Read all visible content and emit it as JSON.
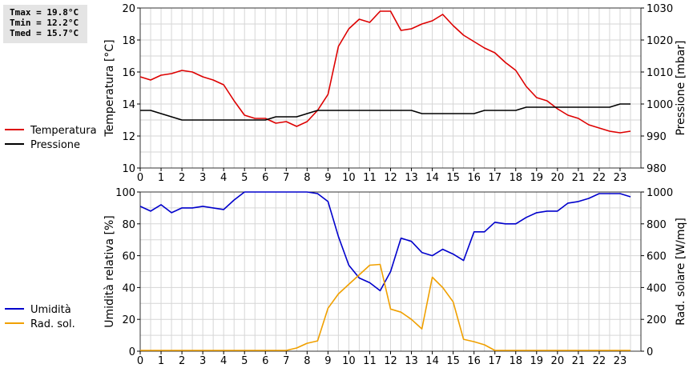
{
  "stats": {
    "tmax": "Tmax = 19.8°C",
    "tmin": "Tmin = 12.2°C",
    "tmed": "Tmed = 15.7°C"
  },
  "chart_data": [
    {
      "type": "line",
      "xlim": [
        0,
        24
      ],
      "x_ticks": [
        0,
        1,
        2,
        3,
        4,
        5,
        6,
        7,
        8,
        9,
        10,
        11,
        12,
        13,
        14,
        15,
        16,
        17,
        18,
        19,
        20,
        21,
        22,
        23
      ],
      "ylabel": "Temperatura [°C]",
      "ylim": [
        10,
        20
      ],
      "y_ticks": [
        10,
        12,
        14,
        16,
        18,
        20
      ],
      "y2label": "Pressione [mbar]",
      "y2lim": [
        980,
        1030
      ],
      "y2_ticks": [
        980,
        990,
        1000,
        1010,
        1020,
        1030
      ],
      "grid": true,
      "legend_position": "left",
      "series": [
        {
          "name": "Temperatura",
          "color": "#dd0000",
          "axis": "left",
          "x": [
            0,
            0.5,
            1,
            1.5,
            2,
            2.5,
            3,
            3.5,
            4,
            4.5,
            5,
            5.5,
            6,
            6.5,
            7,
            7.5,
            8,
            8.5,
            9,
            9.5,
            10,
            10.5,
            11,
            11.5,
            12,
            12.5,
            13,
            13.5,
            14,
            14.5,
            15,
            15.5,
            16,
            16.5,
            17,
            17.5,
            18,
            18.5,
            19,
            19.5,
            20,
            20.5,
            21,
            21.5,
            22,
            22.5,
            23,
            23.5
          ],
          "y": [
            15.7,
            15.5,
            15.8,
            15.9,
            16.1,
            16.0,
            15.7,
            15.5,
            15.2,
            14.2,
            13.3,
            13.1,
            13.1,
            12.8,
            12.9,
            12.6,
            12.9,
            13.6,
            14.6,
            17.6,
            18.7,
            19.3,
            19.1,
            19.8,
            19.8,
            18.6,
            18.7,
            19.0,
            19.2,
            19.6,
            18.9,
            18.3,
            17.9,
            17.5,
            17.2,
            16.6,
            16.1,
            15.1,
            14.4,
            14.2,
            13.7,
            13.3,
            13.1,
            12.7,
            12.5,
            12.3,
            12.2,
            12.3
          ]
        },
        {
          "name": "Pressione",
          "color": "#000000",
          "axis": "right",
          "x": [
            0,
            0.5,
            1,
            1.5,
            2,
            2.5,
            3,
            3.5,
            4,
            4.5,
            5,
            5.5,
            6,
            6.5,
            7,
            7.5,
            8,
            8.5,
            9,
            9.5,
            10,
            10.5,
            11,
            11.5,
            12,
            12.5,
            13,
            13.5,
            14,
            14.5,
            15,
            15.5,
            16,
            16.5,
            17,
            17.5,
            18,
            18.5,
            19,
            19.5,
            20,
            20.5,
            21,
            21.5,
            22,
            22.5,
            23,
            23.5
          ],
          "y": [
            998,
            998,
            997,
            996,
            995,
            995,
            995,
            995,
            995,
            995,
            995,
            995,
            995,
            996,
            996,
            996,
            997,
            998,
            998,
            998,
            998,
            998,
            998,
            998,
            998,
            998,
            998,
            997,
            997,
            997,
            997,
            997,
            997,
            998,
            998,
            998,
            998,
            999,
            999,
            999,
            999,
            999,
            999,
            999,
            999,
            999,
            1000,
            1000
          ]
        }
      ]
    },
    {
      "type": "line",
      "xlim": [
        0,
        24
      ],
      "x_ticks": [
        0,
        1,
        2,
        3,
        4,
        5,
        6,
        7,
        8,
        9,
        10,
        11,
        12,
        13,
        14,
        15,
        16,
        17,
        18,
        19,
        20,
        21,
        22,
        23
      ],
      "ylabel": "Umidità relativa [%]",
      "ylim": [
        0,
        100
      ],
      "y_ticks": [
        0,
        20,
        40,
        60,
        80,
        100
      ],
      "y2label": "Rad. solare [W/mq]",
      "y2lim": [
        0,
        1000
      ],
      "y2_ticks": [
        0,
        200,
        400,
        600,
        800,
        1000
      ],
      "grid": true,
      "legend_position": "left",
      "series": [
        {
          "name": "Umidità",
          "color": "#0000cc",
          "axis": "left",
          "x": [
            0,
            0.5,
            1,
            1.5,
            2,
            2.5,
            3,
            3.5,
            4,
            4.5,
            5,
            5.5,
            6,
            6.5,
            7,
            7.5,
            8,
            8.5,
            9,
            9.5,
            10,
            10.5,
            11,
            11.5,
            12,
            12.5,
            13,
            13.5,
            14,
            14.5,
            15,
            15.5,
            16,
            16.5,
            17,
            17.5,
            18,
            18.5,
            19,
            19.5,
            20,
            20.5,
            21,
            21.5,
            22,
            22.5,
            23,
            23.5
          ],
          "y": [
            91,
            88,
            92,
            87,
            90,
            90,
            91,
            90,
            89,
            95,
            100,
            100,
            100,
            100,
            100,
            100,
            100,
            99,
            94,
            72,
            54,
            46,
            43,
            38,
            50,
            71,
            69,
            62,
            60,
            64,
            61,
            57,
            75,
            75,
            81,
            80,
            80,
            84,
            87,
            88,
            88,
            93,
            94,
            96,
            99,
            99,
            99,
            97
          ]
        },
        {
          "name": "Rad. sol.",
          "color": "#f0a000",
          "axis": "right",
          "x": [
            0,
            0.5,
            1,
            1.5,
            2,
            2.5,
            3,
            3.5,
            4,
            4.5,
            5,
            5.5,
            6,
            6.5,
            7,
            7.5,
            8,
            8.5,
            9,
            9.5,
            10,
            10.5,
            11,
            11.5,
            12,
            12.5,
            13,
            13.5,
            14,
            14.5,
            15,
            15.5,
            16,
            16.5,
            17,
            17.5,
            18,
            18.5,
            19,
            19.5,
            20,
            20.5,
            21,
            21.5,
            22,
            22.5,
            23,
            23.5
          ],
          "y": [
            5,
            5,
            5,
            5,
            5,
            5,
            5,
            5,
            5,
            5,
            5,
            5,
            5,
            5,
            5,
            20,
            50,
            65,
            270,
            360,
            420,
            480,
            540,
            545,
            265,
            245,
            200,
            140,
            465,
            400,
            310,
            75,
            60,
            40,
            5,
            5,
            5,
            5,
            5,
            5,
            5,
            5,
            5,
            5,
            5,
            5,
            5,
            5
          ]
        }
      ]
    }
  ]
}
